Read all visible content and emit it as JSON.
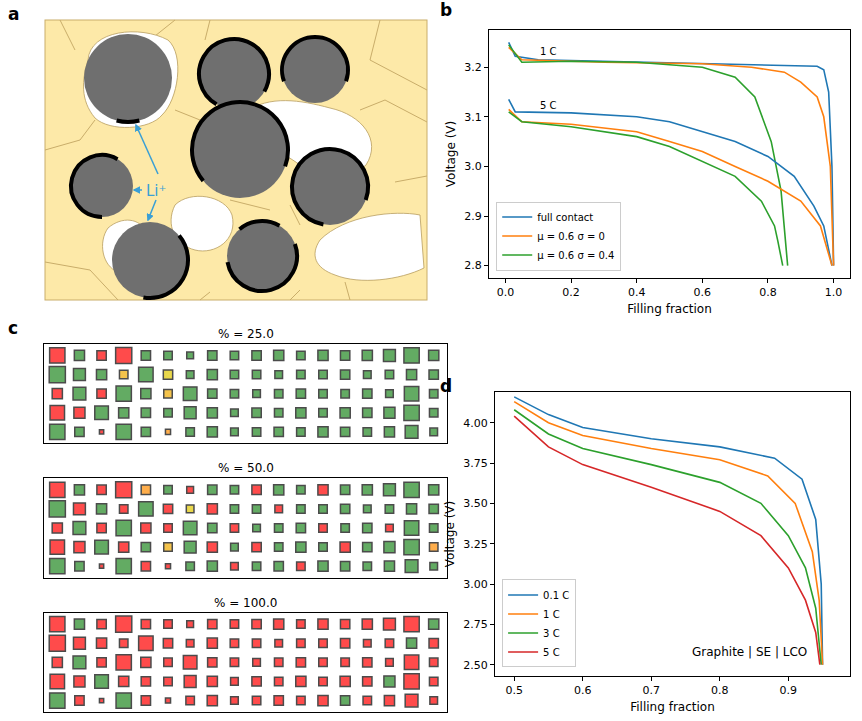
{
  "chart_data": [
    {
      "type": "diagram",
      "label": "a",
      "text": "Li⁺"
    },
    {
      "type": "line",
      "label": "b",
      "x_label": "Filling fraction",
      "y_label": "Voltage (V)",
      "xlim": [
        -0.05,
        1.05
      ],
      "ylim": [
        2.775,
        3.275
      ],
      "xticks": [
        {
          "value": 0,
          "label": "0.0"
        },
        0.2,
        0.4,
        0.6,
        0.8,
        {
          "value": 1,
          "label": "1.0"
        }
      ],
      "yticks": [
        2.8,
        2.9,
        {
          "value": 3,
          "label": "3.0"
        },
        3.1,
        3.2
      ],
      "grid": false,
      "legend": "lower left",
      "annotations": [
        {
          "text": "1 C",
          "x": 0.13,
          "y": 3.232
        },
        {
          "text": "5 C",
          "x": 0.13,
          "y": 3.122
        }
      ],
      "series": [
        {
          "name": "full contact",
          "color": "#1f77b4",
          "x": [
            0.01,
            0.03,
            0.1,
            0.3,
            0.6,
            0.8,
            0.9,
            0.95,
            0.97,
            0.985,
            0.995,
            1.0
          ],
          "values": [
            3.25,
            3.222,
            3.215,
            3.212,
            3.208,
            3.205,
            3.203,
            3.202,
            3.195,
            3.15,
            3.0,
            2.8
          ]
        },
        {
          "name": "μ = 0.6 σ = 0",
          "color": "#ff7f0e",
          "x": [
            0.01,
            0.05,
            0.3,
            0.6,
            0.75,
            0.85,
            0.9,
            0.95,
            0.97,
            0.99,
            1.0
          ],
          "values": [
            3.24,
            3.215,
            3.21,
            3.207,
            3.2,
            3.19,
            3.17,
            3.14,
            3.1,
            3.0,
            2.8
          ]
        },
        {
          "name": "μ = 0.6 σ = 0.4",
          "color": "#2ca02c",
          "x": [
            0.01,
            0.05,
            0.2,
            0.4,
            0.6,
            0.7,
            0.76,
            0.81,
            0.84,
            0.86
          ],
          "values": [
            3.245,
            3.21,
            3.212,
            3.21,
            3.2,
            3.18,
            3.14,
            3.05,
            2.95,
            2.8
          ]
        },
        {
          "name": "full contact",
          "color": "#1f77b4",
          "x": [
            0.01,
            0.03,
            0.2,
            0.4,
            0.5,
            0.6,
            0.7,
            0.8,
            0.88,
            0.94,
            0.97,
            0.995
          ],
          "values": [
            3.135,
            3.11,
            3.108,
            3.1,
            3.09,
            3.07,
            3.05,
            3.02,
            2.98,
            2.92,
            2.88,
            2.8
          ]
        },
        {
          "name": "μ = 0.6 σ = 0",
          "color": "#ff7f0e",
          "x": [
            0.01,
            0.05,
            0.2,
            0.4,
            0.5,
            0.6,
            0.7,
            0.8,
            0.9,
            0.96,
            0.995
          ],
          "values": [
            3.115,
            3.09,
            3.085,
            3.07,
            3.05,
            3.03,
            3.0,
            2.97,
            2.93,
            2.88,
            2.8
          ]
        },
        {
          "name": "μ = 0.6 σ = 0.4",
          "color": "#2ca02c",
          "x": [
            0.01,
            0.05,
            0.2,
            0.4,
            0.5,
            0.6,
            0.7,
            0.78,
            0.82,
            0.83,
            0.845
          ],
          "values": [
            3.11,
            3.09,
            3.08,
            3.06,
            3.04,
            3.01,
            2.98,
            2.93,
            2.88,
            2.85,
            2.8
          ]
        }
      ]
    },
    {
      "type": "grid",
      "label": "c",
      "tick_labels": false,
      "sizes": [
        [
          0.9,
          0.6,
          0.55,
          0.95,
          0.55,
          0.5,
          0.4,
          0.55,
          0.5,
          0.55,
          0.6,
          0.5,
          0.6,
          0.55,
          0.6,
          0.7,
          0.9,
          0.6
        ],
        [
          0.95,
          0.7,
          0.6,
          0.5,
          0.85,
          0.55,
          0.45,
          0.6,
          0.5,
          0.5,
          0.45,
          0.5,
          0.5,
          0.55,
          0.45,
          0.5,
          0.6,
          0.55
        ],
        [
          0.6,
          0.75,
          0.55,
          0.9,
          0.6,
          0.5,
          0.8,
          0.55,
          0.5,
          0.45,
          0.5,
          0.55,
          0.5,
          0.5,
          0.55,
          0.45,
          0.85,
          0.5
        ],
        [
          0.85,
          0.65,
          0.8,
          0.6,
          0.55,
          0.5,
          0.7,
          0.6,
          0.45,
          0.55,
          0.5,
          0.6,
          0.5,
          0.6,
          0.55,
          0.65,
          0.9,
          0.5
        ],
        [
          0.9,
          0.55,
          0.25,
          0.9,
          0.55,
          0.3,
          0.5,
          0.6,
          0.45,
          0.5,
          0.55,
          0.5,
          0.6,
          0.55,
          0.5,
          0.6,
          0.75,
          0.45
        ]
      ],
      "frames": [
        {
          "title": "% = 25.0",
          "fill": [
            [
              1,
              0,
              1,
              1,
              0,
              0,
              0,
              0,
              0,
              0,
              0,
              0,
              0,
              0,
              0,
              0,
              0,
              0
            ],
            [
              0,
              0,
              0,
              0.5,
              0,
              0.4,
              0,
              0,
              0,
              0,
              0,
              0,
              0,
              0,
              0,
              0,
              0,
              0
            ],
            [
              1,
              0,
              1,
              0,
              0,
              0.5,
              0,
              0,
              0,
              0,
              0,
              0,
              0,
              0,
              0,
              0,
              0,
              0
            ],
            [
              1,
              1,
              0,
              0,
              0,
              0,
              0,
              0,
              0,
              0,
              0,
              0,
              0,
              0,
              0,
              0,
              0,
              0
            ],
            [
              0,
              0,
              1,
              0,
              0,
              0.6,
              0,
              0,
              0,
              0,
              0,
              0,
              0,
              0,
              0,
              0,
              0,
              0
            ]
          ]
        },
        {
          "title": "% = 50.0",
          "fill": [
            [
              1,
              0,
              1,
              1,
              0.6,
              0,
              1,
              0,
              0,
              1,
              0,
              0,
              1,
              0,
              0,
              0,
              0,
              0
            ],
            [
              0,
              1,
              0,
              1,
              0,
              1,
              0.4,
              1,
              0,
              0,
              1,
              0,
              0,
              0,
              0,
              0,
              0,
              0
            ],
            [
              1,
              0,
              1,
              0,
              1,
              1,
              0,
              0,
              1,
              0,
              0,
              0,
              1,
              0,
              0,
              1,
              0,
              0
            ],
            [
              1,
              1,
              0,
              1,
              0,
              0.5,
              0,
              1,
              0,
              1,
              0,
              0,
              0,
              1,
              0,
              0,
              0,
              0.6
            ],
            [
              0,
              0,
              1,
              0,
              1,
              1,
              0,
              0,
              1,
              0,
              0,
              1,
              0,
              0,
              0,
              0,
              0,
              0
            ]
          ]
        },
        {
          "title": "% = 100.0",
          "fill": [
            [
              1,
              0,
              1,
              1,
              1,
              1,
              1,
              1,
              1,
              1,
              1,
              1,
              1,
              1,
              1,
              1,
              1,
              0
            ],
            [
              1,
              1,
              1,
              1,
              1,
              1,
              1,
              1,
              1,
              1,
              1,
              1,
              1,
              1,
              1,
              1,
              0,
              1
            ],
            [
              1,
              0,
              1,
              1,
              1,
              1,
              1,
              1,
              1,
              1,
              1,
              1,
              1,
              1,
              1,
              1,
              1,
              1
            ],
            [
              1,
              1,
              0,
              1,
              1,
              1,
              1,
              1,
              1,
              1,
              1,
              1,
              1,
              1,
              1,
              0,
              1,
              1
            ],
            [
              0,
              1,
              1,
              0,
              1,
              1,
              1,
              1,
              1,
              1,
              1,
              1,
              1,
              0,
              1,
              1,
              1,
              1
            ]
          ]
        }
      ]
    },
    {
      "type": "line",
      "label": "d",
      "x_label": "Filling fraction",
      "y_label": "Voltage (V)",
      "xlim": [
        0.472,
        0.99
      ],
      "ylim": [
        2.43,
        4.19
      ],
      "xticks": [
        0.5,
        0.6,
        0.7,
        0.8,
        0.9
      ],
      "yticks": [
        {
          "value": 2.5,
          "label": "2.50"
        },
        2.75,
        {
          "value": 3,
          "label": "3.00"
        },
        3.25,
        {
          "value": 3.5,
          "label": "3.50"
        },
        3.75,
        {
          "value": 4,
          "label": "4.00"
        }
      ],
      "grid": false,
      "legend": "lower left",
      "annotations": [
        {
          "text": "Graphite | SE | LCO",
          "x": 0.93,
          "y": 2.58
        }
      ],
      "series": [
        {
          "name": "0.1 C",
          "color": "#1f77b4",
          "x": [
            0.5,
            0.55,
            0.6,
            0.7,
            0.8,
            0.88,
            0.92,
            0.94,
            0.948,
            0.95
          ],
          "values": [
            4.16,
            4.05,
            3.97,
            3.9,
            3.85,
            3.78,
            3.65,
            3.4,
            3.0,
            2.5
          ]
        },
        {
          "name": "1 C",
          "color": "#ff7f0e",
          "x": [
            0.5,
            0.55,
            0.6,
            0.7,
            0.8,
            0.87,
            0.91,
            0.935,
            0.945,
            0.95
          ],
          "values": [
            4.13,
            4.0,
            3.92,
            3.84,
            3.77,
            3.67,
            3.5,
            3.2,
            2.9,
            2.5
          ]
        },
        {
          "name": "3 C",
          "color": "#2ca02c",
          "x": [
            0.5,
            0.55,
            0.6,
            0.7,
            0.8,
            0.86,
            0.9,
            0.925,
            0.94,
            0.948
          ],
          "values": [
            4.08,
            3.93,
            3.84,
            3.74,
            3.63,
            3.5,
            3.3,
            3.1,
            2.85,
            2.5
          ]
        },
        {
          "name": "5 C",
          "color": "#d62728",
          "x": [
            0.5,
            0.55,
            0.6,
            0.7,
            0.8,
            0.86,
            0.9,
            0.925,
            0.94,
            0.946
          ],
          "values": [
            4.04,
            3.85,
            3.74,
            3.6,
            3.45,
            3.3,
            3.1,
            2.9,
            2.7,
            2.5
          ]
        }
      ]
    }
  ]
}
